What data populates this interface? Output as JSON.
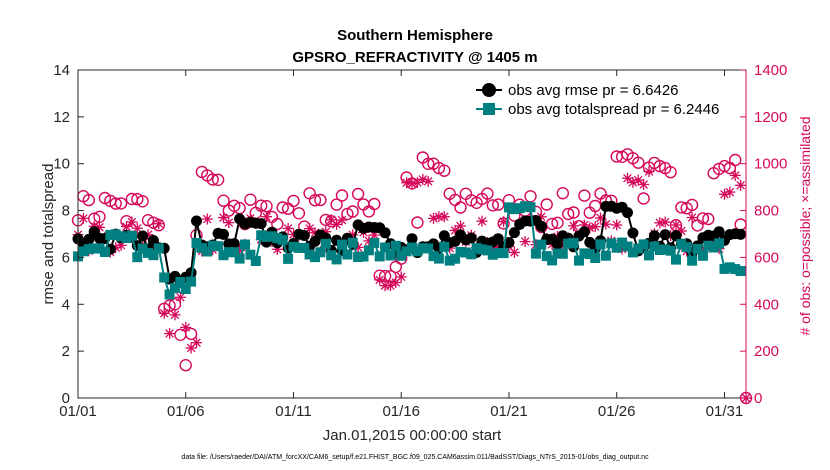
{
  "chart_data": {
    "type": "line",
    "title_line1": "Southern Hemisphere",
    "title_line2": "GPSRO_REFRACTIVITY @ 1405 m",
    "xlabel": "Jan.01,2015 00:00:00 start",
    "ylabel_left": "rmse and totalspread",
    "ylabel_right": "# of obs: o=possible; ×=assimilated",
    "x_ticks": [
      {
        "label": "01/01",
        "day": 0
      },
      {
        "label": "01/06",
        "day": 5
      },
      {
        "label": "01/11",
        "day": 10
      },
      {
        "label": "01/16",
        "day": 15
      },
      {
        "label": "01/21",
        "day": 20
      },
      {
        "label": "01/26",
        "day": 25
      },
      {
        "label": "01/31",
        "day": 30
      }
    ],
    "xlim": [
      0,
      31
    ],
    "ylim_left": [
      0,
      14
    ],
    "y_ticks_left": [
      "0",
      "2",
      "4",
      "6",
      "8",
      "10",
      "12",
      "14"
    ],
    "ylim_right": [
      0,
      1400
    ],
    "y_ticks_right": [
      "0",
      "200",
      "400",
      "600",
      "800",
      "1000",
      "1200",
      "1400"
    ],
    "colors": {
      "rmse": "#000000",
      "totalspread": "#008080",
      "obs": "#d6085a",
      "axis": "#262626"
    },
    "series": [
      {
        "name": "obs avg rmse",
        "legend": "obs avg rmse pr = 6.6426",
        "baseline": 6.65,
        "highlights": [
          [
            5.0,
            7.45
          ],
          [
            8.0,
            7.5
          ],
          [
            21.0,
            7.55
          ],
          [
            25.0,
            8.1
          ],
          [
            31.0,
            7.1
          ],
          [
            4.75,
            4.95
          ],
          [
            13.5,
            7.3
          ]
        ]
      },
      {
        "name": "obs avg totalspread",
        "legend": "obs avg totalspread pr = 6.2446",
        "baseline": 6.24,
        "highlights": [
          [
            4.5,
            5.2
          ],
          [
            4.75,
            4.95
          ],
          [
            2.0,
            6.9
          ],
          [
            9.0,
            6.9
          ],
          [
            20.5,
            8.1
          ],
          [
            31.0,
            6.0
          ],
          [
            30.5,
            5.5
          ]
        ]
      }
    ],
    "obs_possible": {
      "name": "possible",
      "baseline": 800,
      "highlights": [
        [
          5.0,
          280
        ],
        [
          4.5,
          400
        ],
        [
          6.0,
          950
        ],
        [
          15.0,
          950
        ],
        [
          16.5,
          1000
        ],
        [
          25.5,
          1040
        ],
        [
          30.0,
          990
        ],
        [
          27.0,
          990
        ],
        [
          14.5,
          520
        ]
      ]
    },
    "obs_assimilated": {
      "name": "assimilated",
      "baseline": 700,
      "highlights": [
        [
          5.0,
          270
        ],
        [
          4.5,
          400
        ],
        [
          4.75,
          430
        ],
        [
          14.5,
          480
        ],
        [
          15.75,
          920
        ],
        [
          26.0,
          930
        ],
        [
          30.5,
          880
        ],
        [
          31.0,
          860
        ]
      ]
    },
    "footnote": "data file: /Users/raeder/DAI/ATM_forcXX/CAM6_setup/f.e21.FHIST_BGC.f09_025.CAM6assim.011/BadSST/Diags_NTrS_2015-01/obs_diag_output.nc"
  }
}
